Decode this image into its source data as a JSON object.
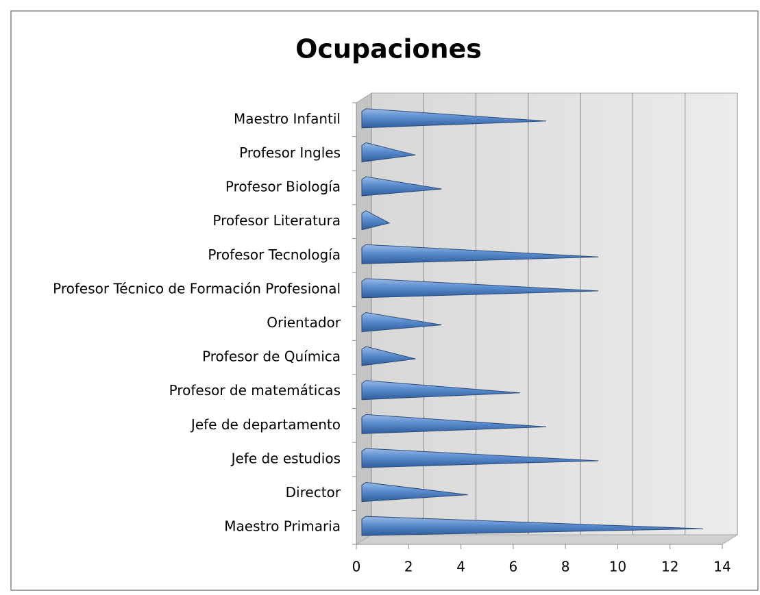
{
  "chart_data": {
    "type": "bar",
    "orientation": "horizontal",
    "title": "Ocupaciones",
    "categories": [
      "Maestro Primaria",
      "Director",
      "Jefe de estudios",
      "Jefe de departamento",
      "Profesor de matemáticas",
      "Profesor de Química",
      "Orientador",
      "Profesor Técnico de Formación Profesional",
      "Profesor Tecnología",
      "Profesor Literatura",
      "Profesor Biología",
      "Profesor Ingles",
      "Maestro Infantil"
    ],
    "values": [
      13,
      4,
      9,
      7,
      6,
      2,
      3,
      9,
      9,
      1,
      3,
      2,
      7
    ],
    "color": "#4f81bd",
    "xlim": [
      0,
      14
    ],
    "xticks": [
      0,
      2,
      4,
      6,
      8,
      10,
      12,
      14
    ],
    "grid": true
  }
}
